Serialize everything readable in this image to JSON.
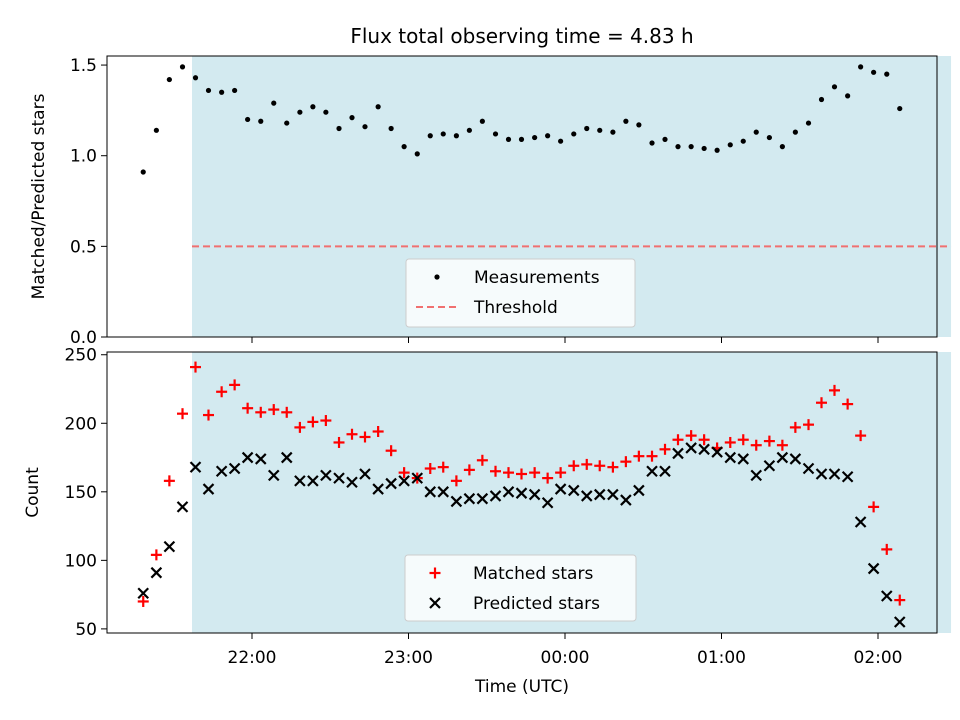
{
  "figure": {
    "title": "Flux total observing time = 4.83 h",
    "xlabel": "Time (UTC)",
    "xticks": [
      {
        "t": -2.0,
        "label": "22:00"
      },
      {
        "t": -1.0,
        "label": "23:00"
      },
      {
        "t": 0.0,
        "label": "00:00"
      },
      {
        "t": 1.0,
        "label": "01:00"
      },
      {
        "t": 2.0,
        "label": "02:00"
      }
    ],
    "shade_color": "#d3eaf0",
    "shade_range": [
      "21:37",
      "02:28"
    ]
  },
  "chart_data": [
    {
      "type": "scatter",
      "panel": "top",
      "ylabel": "Matched/Predicted stars",
      "ylim": [
        0,
        1.55
      ],
      "yticks": [
        0.0,
        0.5,
        1.0,
        1.5
      ],
      "ytick_labels": [
        "0.0",
        "0.5",
        "1.0",
        "1.5"
      ],
      "threshold": {
        "name": "Threshold",
        "y": 0.5,
        "color": "#f07070",
        "style": "dashed"
      },
      "series": [
        {
          "name": "Measurements",
          "color": "#000000",
          "marker": "dot",
          "x": [
            -2.695,
            -2.611,
            -2.528,
            -2.444,
            -2.361,
            -2.278,
            -2.194,
            -2.111,
            -2.028,
            -1.944,
            -1.861,
            -1.778,
            -1.694,
            -1.611,
            -1.528,
            -1.444,
            -1.361,
            -1.278,
            -1.194,
            -1.111,
            -1.028,
            -0.944,
            -0.861,
            -0.778,
            -0.694,
            -0.611,
            -0.528,
            -0.444,
            -0.361,
            -0.278,
            -0.194,
            -0.111,
            -0.028,
            0.056,
            0.139,
            0.222,
            0.306,
            0.389,
            0.472,
            0.556,
            0.639,
            0.722,
            0.806,
            0.889,
            0.972,
            1.056,
            1.139,
            1.222,
            1.306,
            1.389,
            1.472,
            1.556,
            1.639,
            1.722,
            1.806,
            1.889,
            1.972,
            2.056,
            2.139
          ],
          "y": [
            0.91,
            1.14,
            1.42,
            1.49,
            1.43,
            1.36,
            1.35,
            1.36,
            1.2,
            1.19,
            1.29,
            1.18,
            1.24,
            1.27,
            1.24,
            1.15,
            1.21,
            1.16,
            1.27,
            1.15,
            1.05,
            1.01,
            1.11,
            1.12,
            1.11,
            1.14,
            1.19,
            1.12,
            1.09,
            1.09,
            1.1,
            1.11,
            1.08,
            1.12,
            1.15,
            1.14,
            1.13,
            1.19,
            1.17,
            1.07,
            1.09,
            1.05,
            1.05,
            1.04,
            1.03,
            1.06,
            1.08,
            1.13,
            1.1,
            1.05,
            1.13,
            1.18,
            1.31,
            1.38,
            1.33,
            1.49,
            1.46,
            1.45,
            1.26
          ]
        }
      ],
      "legend": {
        "placement": "lower center"
      }
    },
    {
      "type": "scatter",
      "panel": "bottom",
      "ylabel": "Count",
      "ylim": [
        47,
        252
      ],
      "yticks": [
        50,
        100,
        150,
        200,
        250
      ],
      "ytick_labels": [
        "50",
        "100",
        "150",
        "200",
        "250"
      ],
      "series": [
        {
          "name": "Matched stars",
          "color": "#ff0000",
          "marker": "plus",
          "x": [
            -2.695,
            -2.611,
            -2.528,
            -2.444,
            -2.361,
            -2.278,
            -2.194,
            -2.111,
            -2.028,
            -1.944,
            -1.861,
            -1.778,
            -1.694,
            -1.611,
            -1.528,
            -1.444,
            -1.361,
            -1.278,
            -1.194,
            -1.111,
            -1.028,
            -0.944,
            -0.861,
            -0.778,
            -0.694,
            -0.611,
            -0.528,
            -0.444,
            -0.361,
            -0.278,
            -0.194,
            -0.111,
            -0.028,
            0.056,
            0.139,
            0.222,
            0.306,
            0.389,
            0.472,
            0.556,
            0.639,
            0.722,
            0.806,
            0.889,
            0.972,
            1.056,
            1.139,
            1.222,
            1.306,
            1.389,
            1.472,
            1.556,
            1.639,
            1.722,
            1.806,
            1.889,
            1.972,
            2.056,
            2.139
          ],
          "y": [
            70,
            104,
            158,
            207,
            241,
            206,
            223,
            228,
            211,
            208,
            210,
            208,
            197,
            201,
            202,
            186,
            192,
            190,
            194,
            180,
            164,
            160,
            167,
            168,
            158,
            166,
            173,
            165,
            164,
            163,
            164,
            160,
            164,
            169,
            170,
            169,
            168,
            172,
            176,
            176,
            181,
            188,
            191,
            188,
            182,
            186,
            188,
            184,
            187,
            184,
            197,
            199,
            215,
            224,
            214,
            191,
            139,
            108,
            71
          ]
        },
        {
          "name": "Predicted stars",
          "color": "#000000",
          "marker": "x",
          "x": [
            -2.695,
            -2.611,
            -2.528,
            -2.444,
            -2.361,
            -2.278,
            -2.194,
            -2.111,
            -2.028,
            -1.944,
            -1.861,
            -1.778,
            -1.694,
            -1.611,
            -1.528,
            -1.444,
            -1.361,
            -1.278,
            -1.194,
            -1.111,
            -1.028,
            -0.944,
            -0.861,
            -0.778,
            -0.694,
            -0.611,
            -0.528,
            -0.444,
            -0.361,
            -0.278,
            -0.194,
            -0.111,
            -0.028,
            0.056,
            0.139,
            0.222,
            0.306,
            0.389,
            0.472,
            0.556,
            0.639,
            0.722,
            0.806,
            0.889,
            0.972,
            1.056,
            1.139,
            1.222,
            1.306,
            1.389,
            1.472,
            1.556,
            1.639,
            1.722,
            1.806,
            1.889,
            1.972,
            2.056,
            2.139
          ],
          "y": [
            76,
            91,
            110,
            139,
            168,
            152,
            165,
            167,
            175,
            174,
            162,
            175,
            158,
            158,
            162,
            160,
            157,
            163,
            152,
            156,
            158,
            160,
            150,
            150,
            143,
            145,
            145,
            147,
            150,
            149,
            148,
            142,
            152,
            151,
            147,
            148,
            148,
            144,
            151,
            165,
            165,
            178,
            182,
            181,
            179,
            175,
            174,
            162,
            169,
            175,
            174,
            167,
            163,
            163,
            161,
            128,
            94,
            74,
            55
          ]
        }
      ],
      "legend": {
        "placement": "lower center"
      }
    }
  ]
}
